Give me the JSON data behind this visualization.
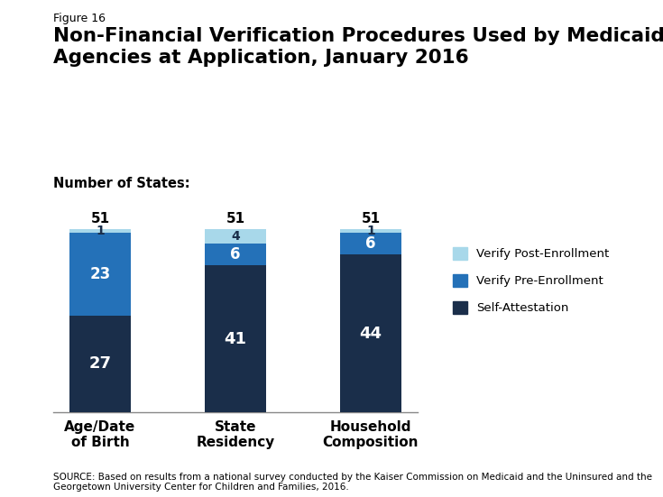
{
  "figure_label": "Figure 16",
  "title": "Non-Financial Verification Procedures Used by Medicaid\nAgencies at Application, January 2016",
  "subtitle": "Number of States:",
  "categories": [
    "Age/Date\nof Birth",
    "State\nResidency",
    "Household\nComposition"
  ],
  "self_attestation": [
    27,
    41,
    44
  ],
  "verify_pre_enrollment": [
    23,
    6,
    6
  ],
  "verify_post_enrollment": [
    1,
    4,
    1
  ],
  "totals": [
    51,
    51,
    51
  ],
  "color_self_attestation": "#1a2e4a",
  "color_pre_enrollment": "#2471b8",
  "color_post_enrollment": "#a8d8ea",
  "legend_labels": [
    "Verify Post-Enrollment",
    "Verify Pre-Enrollment",
    "Self-Attestation"
  ],
  "source_text": "SOURCE: Based on results from a national survey conducted by the Kaiser Commission on Medicaid and the Uninsured and the\nGeorgetown University Center for Children and Families, 2016.",
  "bar_width": 0.45,
  "ylim": [
    0,
    58
  ],
  "background_color": "#ffffff"
}
